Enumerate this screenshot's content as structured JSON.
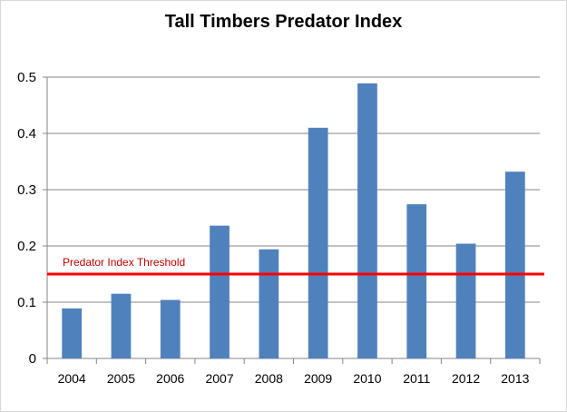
{
  "chart_data": {
    "type": "bar",
    "title": "Tall Timbers Predator Index",
    "xlabel": "",
    "ylabel": "",
    "categories": [
      "2004",
      "2005",
      "2006",
      "2007",
      "2008",
      "2009",
      "2010",
      "2011",
      "2012",
      "2013"
    ],
    "values": [
      0.089,
      0.115,
      0.104,
      0.236,
      0.194,
      0.41,
      0.489,
      0.274,
      0.204,
      0.332
    ],
    "ylim": [
      0,
      0.5
    ],
    "yticks": [
      "0",
      "0.1",
      "0.2",
      "0.3",
      "0.4",
      "0.5"
    ],
    "grid": true,
    "legend": "none",
    "bar_color": "#4f81bd",
    "threshold": {
      "label": "Predator Index Threshold",
      "value": 0.15,
      "color": "#ff0000",
      "label_color": "#c00000"
    }
  }
}
